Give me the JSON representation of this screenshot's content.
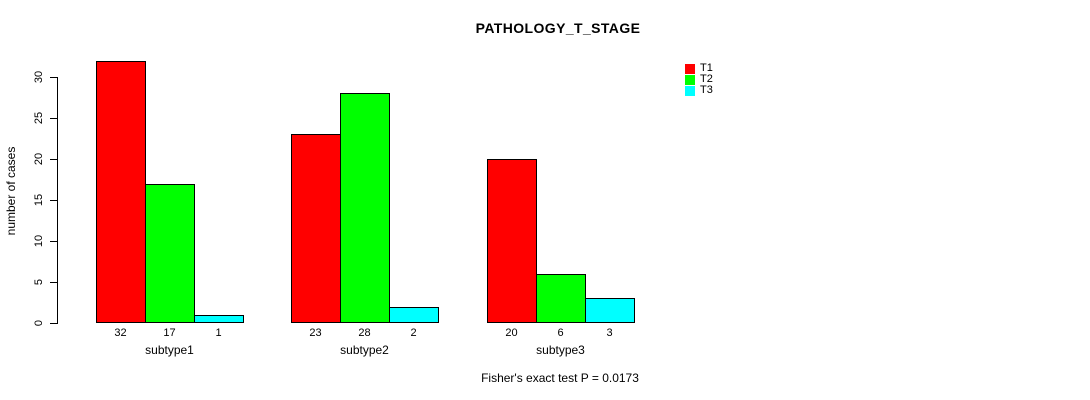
{
  "title": "PATHOLOGY_T_STAGE",
  "y_axis": {
    "label": "number of cases",
    "ticks": [
      0,
      5,
      10,
      15,
      20,
      25,
      30
    ]
  },
  "footnote": "Fisher's exact test P = 0.0173",
  "legend": {
    "items": [
      {
        "label": "T1",
        "color": "#ff0000"
      },
      {
        "label": "T2",
        "color": "#00ff00"
      },
      {
        "label": "T3",
        "color": "#00ffff"
      }
    ]
  },
  "chart_data": {
    "type": "bar",
    "title": "PATHOLOGY_T_STAGE",
    "xlabel": "",
    "ylabel": "number of cases",
    "categories": [
      "subtype1",
      "subtype2",
      "subtype3"
    ],
    "series": [
      {
        "name": "T1",
        "color": "#ff0000",
        "values": [
          32,
          23,
          20
        ]
      },
      {
        "name": "T2",
        "color": "#00ff00",
        "values": [
          17,
          28,
          6
        ]
      },
      {
        "name": "T3",
        "color": "#00ffff",
        "values": [
          1,
          2,
          3
        ]
      }
    ],
    "yticks": [
      0,
      5,
      10,
      15,
      20,
      25,
      30
    ],
    "ylim": [
      0,
      32
    ],
    "grid": false,
    "bar_value_labels": true,
    "bar_border_color": "#000000",
    "legend_position": "top-right",
    "annotation": "Fisher's exact test P = 0.0173"
  }
}
